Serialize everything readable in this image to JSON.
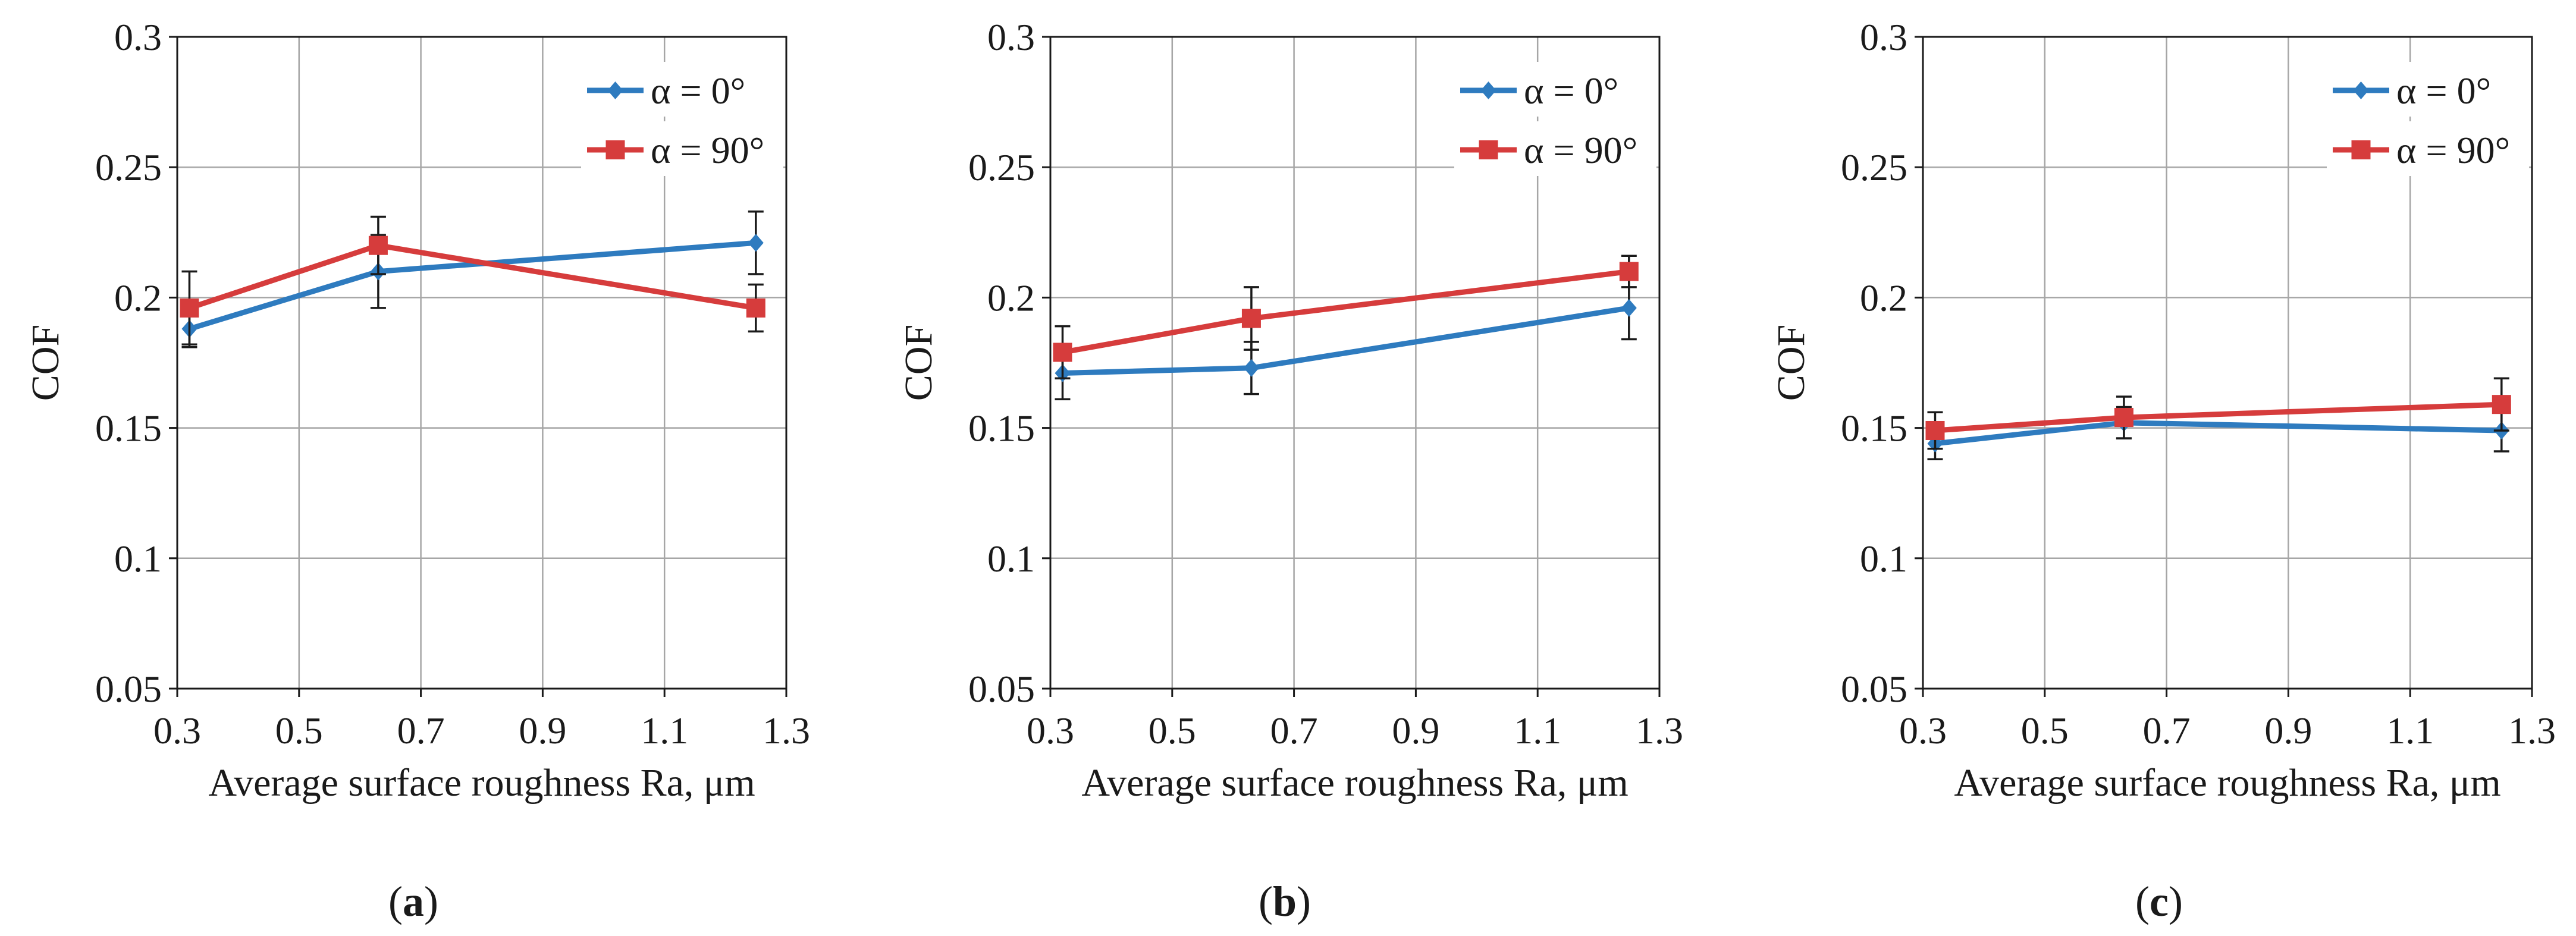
{
  "chart_data": [
    {
      "type": "line",
      "panel_label": "a",
      "xlabel": "Average surface roughness Ra, μm",
      "ylabel": "COF",
      "xlim": [
        0.3,
        1.3
      ],
      "ylim": [
        0.05,
        0.3
      ],
      "x_ticks": [
        "0.3",
        "0.5",
        "0.7",
        "0.9",
        "1.1",
        "1.3"
      ],
      "y_ticks": [
        "0.05",
        "0.1",
        "0.15",
        "0.2",
        "0.25",
        "0.3"
      ],
      "grid": true,
      "legend_position": "top-right",
      "series": [
        {
          "name": "α = 0°",
          "color": "#2e7bbf",
          "marker": "diamond",
          "x": [
            0.32,
            0.63,
            1.25
          ],
          "y": [
            0.188,
            0.21,
            0.221
          ],
          "err": [
            0.007,
            0.014,
            0.012
          ]
        },
        {
          "name": "α = 90°",
          "color": "#d63c3c",
          "marker": "square",
          "x": [
            0.32,
            0.63,
            1.25
          ],
          "y": [
            0.196,
            0.22,
            0.196
          ],
          "err": [
            0.014,
            0.011,
            0.009
          ]
        }
      ]
    },
    {
      "type": "line",
      "panel_label": "b",
      "xlabel": "Average surface roughness Ra, μm",
      "ylabel": "COF",
      "xlim": [
        0.3,
        1.3
      ],
      "ylim": [
        0.05,
        0.3
      ],
      "x_ticks": [
        "0.3",
        "0.5",
        "0.7",
        "0.9",
        "1.1",
        "1.3"
      ],
      "y_ticks": [
        "0.05",
        "0.1",
        "0.15",
        "0.2",
        "0.25",
        "0.3"
      ],
      "grid": true,
      "legend_position": "top-right",
      "series": [
        {
          "name": "α = 0°",
          "color": "#2e7bbf",
          "marker": "diamond",
          "x": [
            0.32,
            0.63,
            1.25
          ],
          "y": [
            0.171,
            0.173,
            0.196
          ],
          "err": [
            0.01,
            0.01,
            0.012
          ]
        },
        {
          "name": "α = 90°",
          "color": "#d63c3c",
          "marker": "square",
          "x": [
            0.32,
            0.63,
            1.25
          ],
          "y": [
            0.179,
            0.192,
            0.21
          ],
          "err": [
            0.01,
            0.012,
            0.006
          ]
        }
      ]
    },
    {
      "type": "line",
      "panel_label": "c",
      "xlabel": "Average surface roughness Ra, μm",
      "ylabel": "COF",
      "xlim": [
        0.3,
        1.3
      ],
      "ylim": [
        0.05,
        0.3
      ],
      "x_ticks": [
        "0.3",
        "0.5",
        "0.7",
        "0.9",
        "1.1",
        "1.3"
      ],
      "y_ticks": [
        "0.05",
        "0.1",
        "0.15",
        "0.2",
        "0.25",
        "0.3"
      ],
      "grid": true,
      "legend_position": "top-right",
      "series": [
        {
          "name": "α = 0°",
          "color": "#2e7bbf",
          "marker": "diamond",
          "x": [
            0.32,
            0.63,
            1.25
          ],
          "y": [
            0.144,
            0.152,
            0.149
          ],
          "err": [
            0.006,
            0.006,
            0.008
          ]
        },
        {
          "name": "α = 90°",
          "color": "#d63c3c",
          "marker": "square",
          "x": [
            0.32,
            0.63,
            1.25
          ],
          "y": [
            0.149,
            0.154,
            0.159
          ],
          "err": [
            0.007,
            0.008,
            0.01
          ]
        }
      ]
    }
  ]
}
